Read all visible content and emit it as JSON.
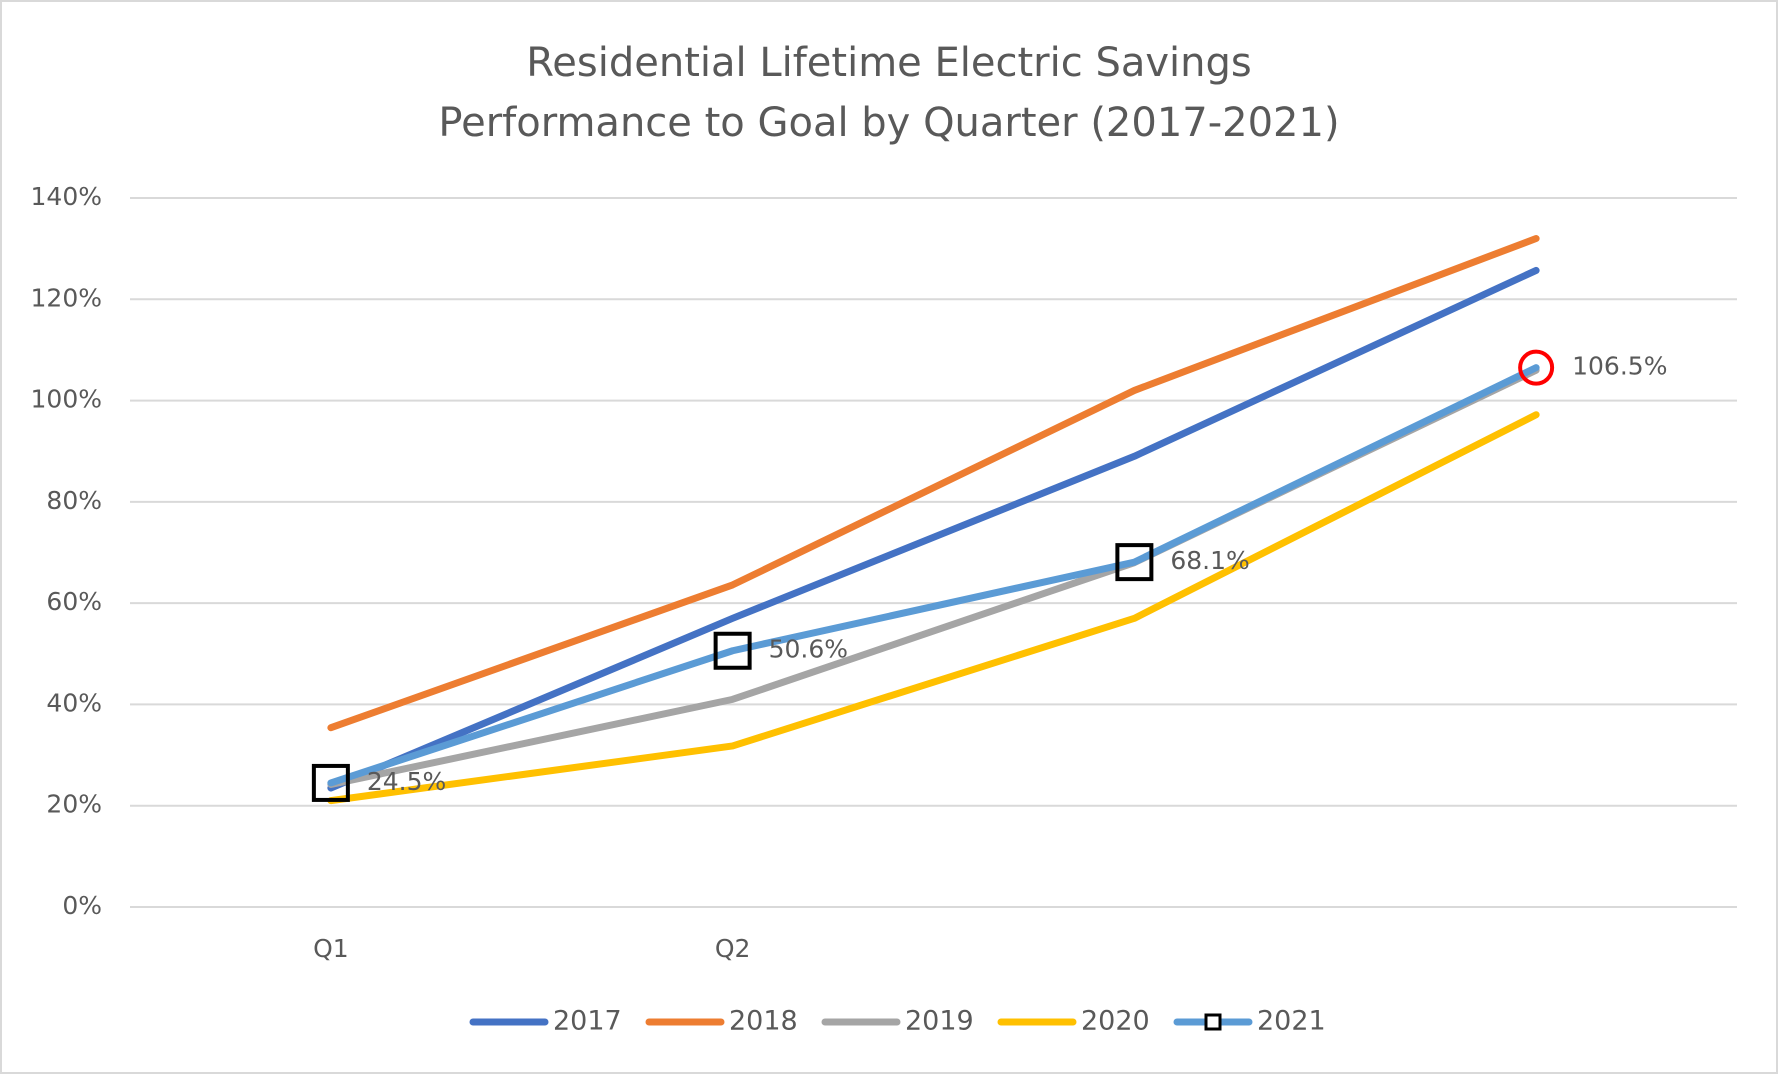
{
  "chart_data": {
    "type": "line",
    "title": [
      "Residential Lifetime Electric Savings",
      "Performance to Goal by Quarter (2017-2021)"
    ],
    "categories": [
      "Q1",
      "Q2",
      null,
      null
    ],
    "ylim": [
      0,
      140
    ],
    "yticks": [
      {
        "value": 0,
        "label": "0%"
      },
      {
        "value": 20,
        "label": "20%"
      },
      {
        "value": 40,
        "label": "40%"
      },
      {
        "value": 60,
        "label": "60%"
      },
      {
        "value": 80,
        "label": "80%"
      },
      {
        "value": 100,
        "label": "100%"
      },
      {
        "value": 120,
        "label": "120%"
      },
      {
        "value": 140,
        "label": "140%"
      }
    ],
    "grid": true,
    "legend": "bottom",
    "series": [
      {
        "name": "2017",
        "color": "#4472c4",
        "values": [
          23.5,
          57,
          89,
          125.7
        ]
      },
      {
        "name": "2018",
        "color": "#ed7d31",
        "values": [
          35.4,
          63.6,
          102,
          132
        ]
      },
      {
        "name": "2019",
        "color": "#a5a5a5",
        "values": [
          24.2,
          41,
          68,
          106
        ]
      },
      {
        "name": "2020",
        "color": "#ffc000",
        "values": [
          21,
          31.8,
          57,
          97.2
        ]
      },
      {
        "name": "2021",
        "color": "#5b9bd5",
        "values": [
          24.5,
          50.6,
          68.1,
          106.5
        ],
        "value_labels": [
          "24.5%",
          "50.6%",
          "68.1%",
          "106.5%"
        ],
        "marker": "square",
        "highlight_color": "#ff0000"
      }
    ]
  }
}
